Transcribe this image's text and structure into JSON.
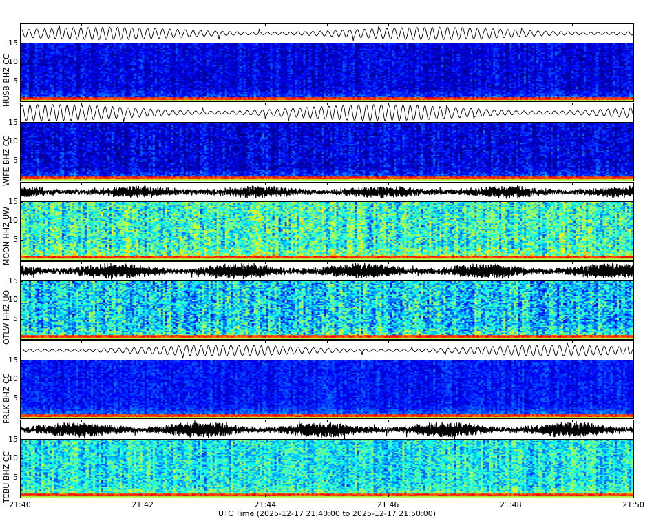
{
  "chart_data": {
    "type": "heatmap",
    "subtype": "seismic waveform + spectrogram panels",
    "colormap": "jet",
    "xlabel": "UTC Time (2025-12-17 21:40:00 to 2025-12-17 21:50:00)",
    "x_ticks": [
      "21:40",
      "21:42",
      "21:44",
      "21:46",
      "21:48",
      "21:50"
    ],
    "xlim": [
      "21:40:00",
      "21:50:00"
    ],
    "y_ticks": [
      5,
      10,
      15
    ],
    "ylim": [
      0,
      15
    ],
    "stations": [
      {
        "label": "HUSB BHZ CC"
      },
      {
        "label": "WIFE BHZ CC"
      },
      {
        "label": "MOON HHZ UW"
      },
      {
        "label": "OTLW HHZ UO"
      },
      {
        "label": "PRLK BHZ CC"
      },
      {
        "label": "TCBU BHZ CC"
      }
    ]
  }
}
